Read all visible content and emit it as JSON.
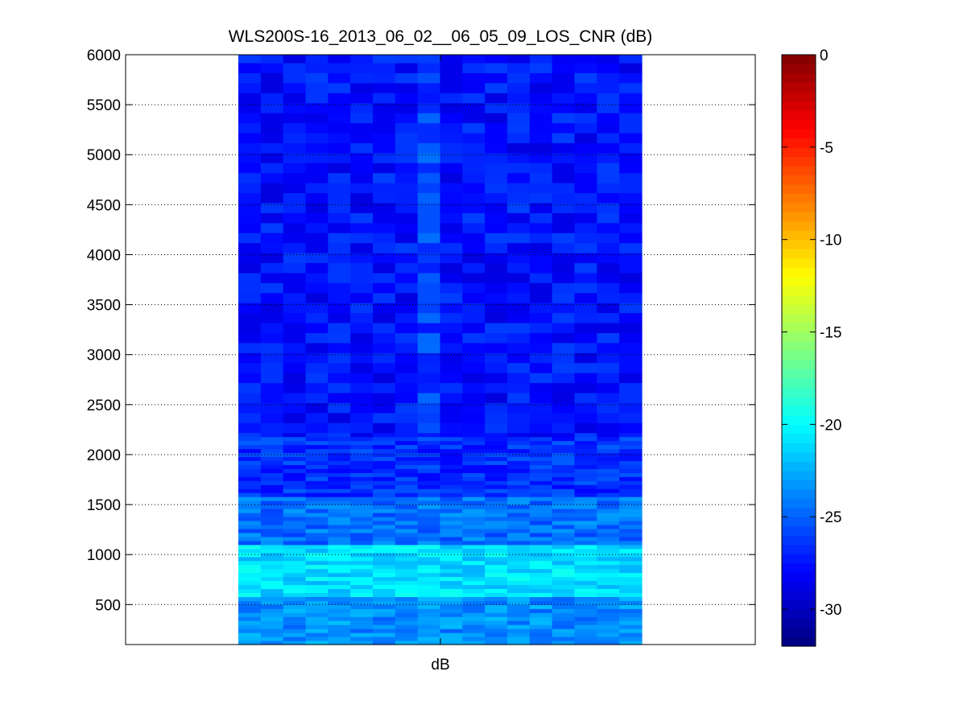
{
  "chart_data": {
    "type": "heatmap",
    "title": "WLS200S-16_2013_06_02__06_05_09_LOS_CNR (dB)",
    "xlabel": "dB",
    "ylabel": "",
    "ylim": [
      100,
      6000
    ],
    "yticks": [
      500,
      1000,
      1500,
      2000,
      2500,
      3000,
      3500,
      4000,
      4500,
      5000,
      5500,
      6000
    ],
    "x_columns": 18,
    "y_rows": [
      100,
      6000
    ],
    "grid": "y-dotted",
    "colormap": "jet",
    "colorbar": {
      "range": [
        -32,
        0
      ],
      "ticks": [
        0,
        -5,
        -10,
        -15,
        -20,
        -25,
        -30
      ]
    },
    "profile": {
      "description_values_dB": [
        {
          "range": [
            100,
            600
          ],
          "cnr": -23.5
        },
        {
          "range": [
            600,
            1100
          ],
          "cnr": -21.0
        },
        {
          "range": [
            1100,
            1600
          ],
          "cnr": -24.5
        },
        {
          "range": [
            1600,
            2200
          ],
          "cnr": -26.5
        },
        {
          "range": [
            2200,
            6000
          ],
          "cnr": -27.5
        }
      ]
    },
    "colors": {
      "dark_blue": "#00008f",
      "blue": "#0000ff",
      "cyan": "#00ffff",
      "yellow": "#ffff00",
      "red": "#ff0000",
      "dark_red": "#800000"
    }
  }
}
